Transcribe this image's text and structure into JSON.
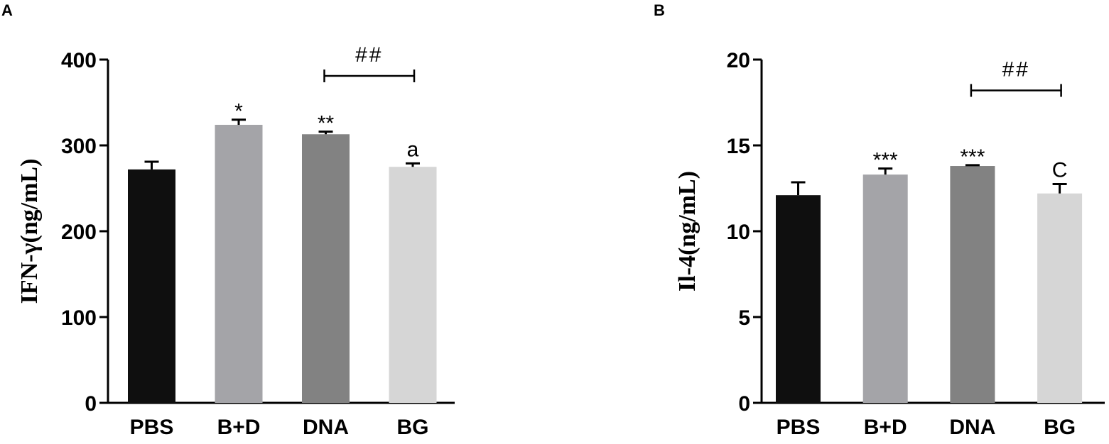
{
  "chart_data": [
    {
      "panel": "A",
      "type": "bar",
      "ylabel": "IFN-γ(ng/mL)",
      "xlabel": "",
      "ylim": [
        0,
        400
      ],
      "yticks": [
        "0",
        "100",
        "200",
        "300",
        "400"
      ],
      "categories": [
        "PBS",
        "B+D",
        "DNA",
        "BG"
      ],
      "values": [
        272,
        324,
        313,
        275
      ],
      "errors": [
        9,
        6,
        3,
        4
      ],
      "colors": [
        "#0f0f0f",
        "#a4a4a8",
        "#828282",
        "#d6d6d6"
      ],
      "annotations": [
        "",
        "*",
        "**",
        "a"
      ],
      "bracket": {
        "from": "DNA",
        "to": "BG",
        "label": "##",
        "level": 381
      }
    },
    {
      "panel": "B",
      "type": "bar",
      "ylabel": "Il-4(ng/mL)",
      "xlabel": "",
      "ylim": [
        0,
        20
      ],
      "yticks": [
        "0",
        "5",
        "10",
        "15",
        "20"
      ],
      "categories": [
        "PBS",
        "B+D",
        "DNA",
        "BG"
      ],
      "values": [
        12.1,
        13.3,
        13.8,
        12.2
      ],
      "errors": [
        0.75,
        0.35,
        0.05,
        0.55
      ],
      "colors": [
        "#0f0f0f",
        "#a4a4a8",
        "#828282",
        "#d6d6d6"
      ],
      "annotations": [
        "",
        "***",
        "***",
        "C"
      ],
      "bracket": {
        "from": "DNA",
        "to": "BG",
        "label": "##",
        "level": 18.2
      }
    }
  ]
}
